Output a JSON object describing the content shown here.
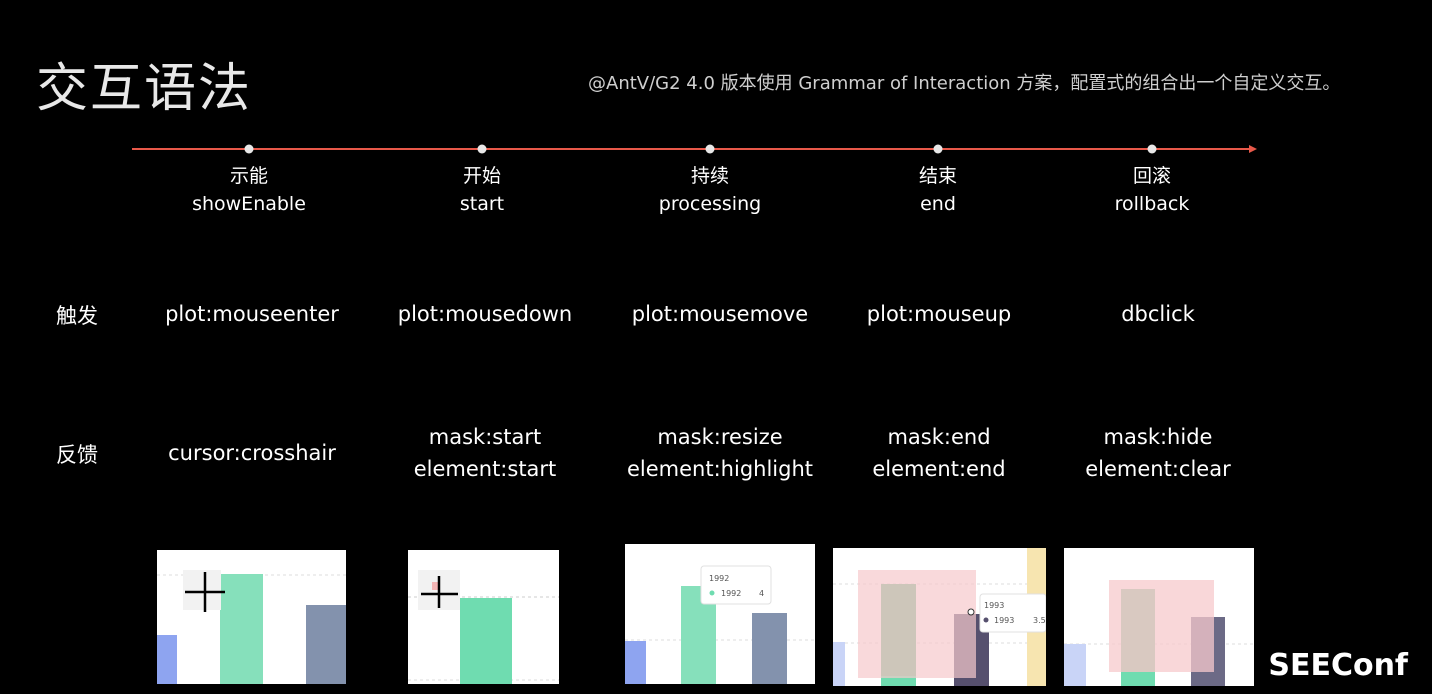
{
  "title": "交互语法",
  "subtitle": "@AntV/G2 4.0  版本使用 Grammar of Interaction 方案，配置式的组合出一个自定义交互。",
  "stages": [
    {
      "cn": "示能",
      "en": "showEnable"
    },
    {
      "cn": "开始",
      "en": "start"
    },
    {
      "cn": "持续",
      "en": "processing"
    },
    {
      "cn": "结束",
      "en": "end"
    },
    {
      "cn": "回滚",
      "en": "rollback"
    }
  ],
  "rows": {
    "trigger": {
      "label": "触发",
      "values": [
        "plot:mouseenter",
        "plot:mousedown",
        "plot:mousemove",
        "plot:mouseup",
        "dbclick"
      ]
    },
    "feedback": {
      "label": "反馈",
      "values": [
        [
          "cursor:crosshair"
        ],
        [
          "mask:start",
          "element:start"
        ],
        [
          "mask:resize",
          "element:highlight"
        ],
        [
          "mask:end",
          "element:end"
        ],
        [
          "mask:hide",
          "element:clear"
        ]
      ]
    }
  },
  "thumbnails": {
    "tooltip1": {
      "title": "1992",
      "value": "4"
    },
    "tooltip2": {
      "title": "1993",
      "value": "3.5"
    }
  },
  "colors": {
    "timeline": "#e8594a",
    "green": "#6fdcb0",
    "slate": "#8392ad",
    "blue": "#8ea4f0",
    "mask": "#f7c9cc"
  },
  "logo": "SEEConf"
}
